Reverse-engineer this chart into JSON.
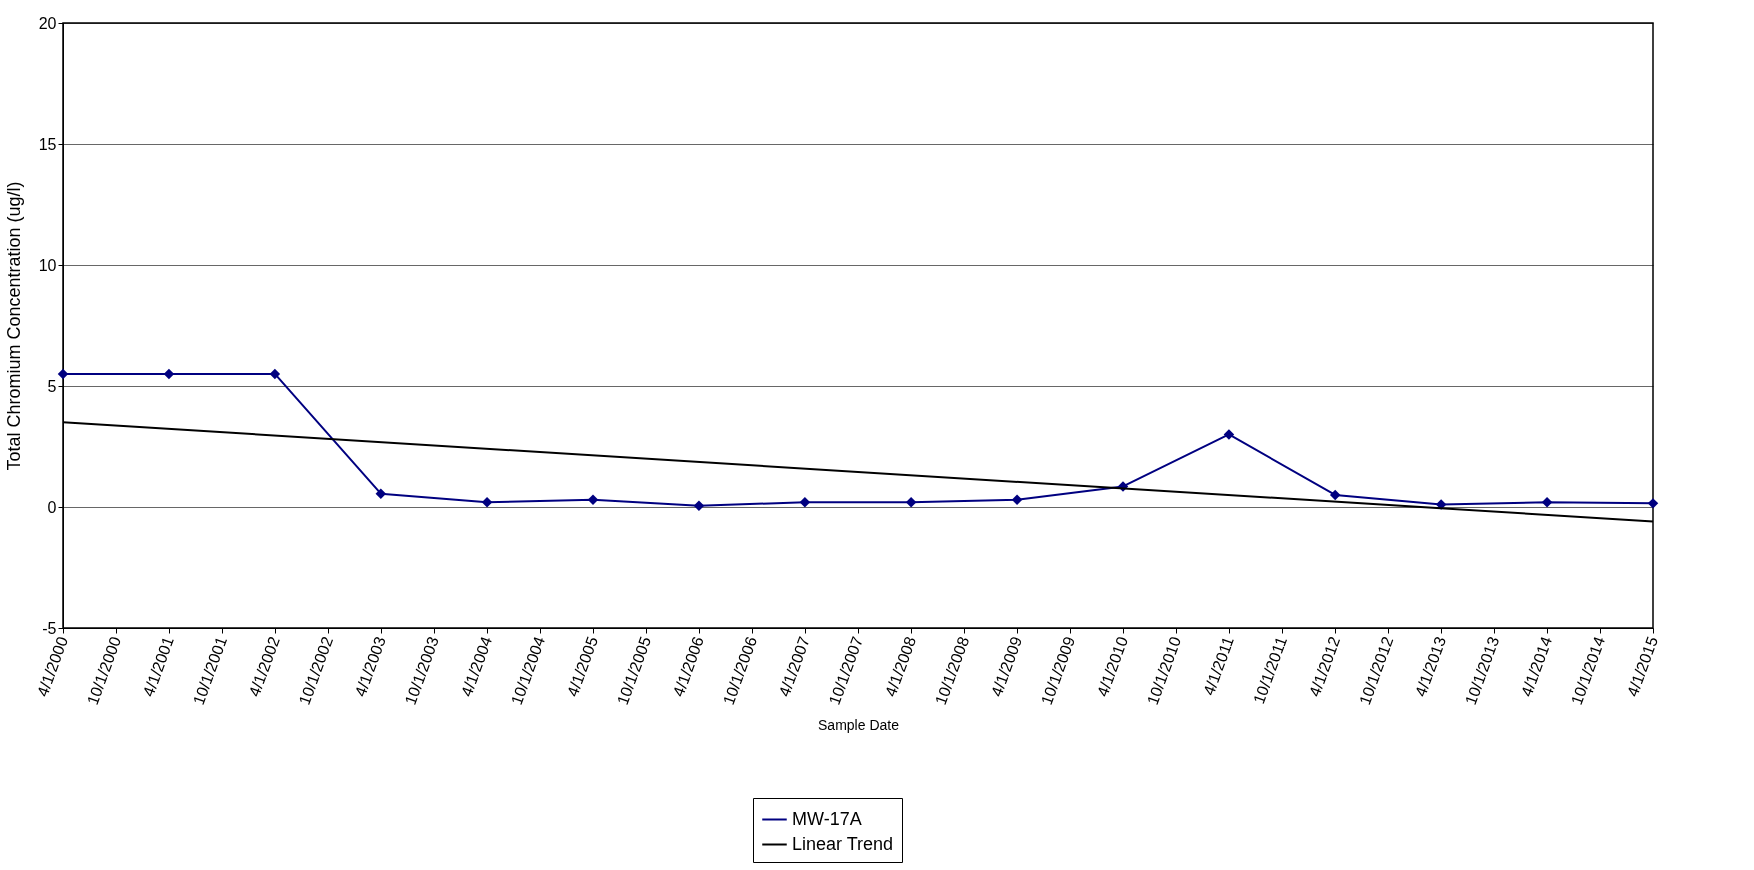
{
  "chart_data": {
    "type": "line",
    "xlabel": "Sample Date",
    "ylabel": "Total Chromium Concentration (ug/l)",
    "x": [
      "2000-04-01",
      "2001-04-01",
      "2002-04-01",
      "2003-04-01",
      "2004-04-01",
      "2005-04-01",
      "2006-04-01",
      "2007-04-01",
      "2008-04-01",
      "2009-04-01",
      "2010-04-01",
      "2011-04-01",
      "2012-04-01",
      "2013-04-01",
      "2014-04-01",
      "2015-04-01"
    ],
    "series": [
      {
        "name": "MW-17A",
        "color": "#000080",
        "marker": "diamond",
        "values": [
          5.5,
          5.5,
          5.5,
          0.55,
          0.2,
          0.3,
          0.05,
          0.2,
          0.2,
          0.3,
          0.85,
          3.0,
          0.5,
          0.1,
          0.2,
          0.15
        ]
      },
      {
        "name": "Linear Trend",
        "color": "#000000",
        "type": "line",
        "marker": "none",
        "x": [
          "2000-04-01",
          "2015-04-01"
        ],
        "values": [
          3.5,
          -0.6
        ]
      }
    ],
    "ylim": [
      -5,
      20
    ],
    "yticks": [
      -5,
      0,
      5,
      10,
      15,
      20
    ],
    "xlim": [
      "2000-04-01",
      "2015-04-01"
    ],
    "xticks": [
      {
        "value": "2000-04-01",
        "label": "4/1/2000"
      },
      {
        "value": "2000-10-01",
        "label": "10/1/2000"
      },
      {
        "value": "2001-04-01",
        "label": "4/1/2001"
      },
      {
        "value": "2001-10-01",
        "label": "10/1/2001"
      },
      {
        "value": "2002-04-01",
        "label": "4/1/2002"
      },
      {
        "value": "2002-10-01",
        "label": "10/1/2002"
      },
      {
        "value": "2003-04-01",
        "label": "4/1/2003"
      },
      {
        "value": "2003-10-01",
        "label": "10/1/2003"
      },
      {
        "value": "2004-04-01",
        "label": "4/1/2004"
      },
      {
        "value": "2004-10-01",
        "label": "10/1/2004"
      },
      {
        "value": "2005-04-01",
        "label": "4/1/2005"
      },
      {
        "value": "2005-10-01",
        "label": "10/1/2005"
      },
      {
        "value": "2006-04-01",
        "label": "4/1/2006"
      },
      {
        "value": "2006-10-01",
        "label": "10/1/2006"
      },
      {
        "value": "2007-04-01",
        "label": "4/1/2007"
      },
      {
        "value": "2007-10-01",
        "label": "10/1/2007"
      },
      {
        "value": "2008-04-01",
        "label": "4/1/2008"
      },
      {
        "value": "2008-10-01",
        "label": "10/1/2008"
      },
      {
        "value": "2009-04-01",
        "label": "4/1/2009"
      },
      {
        "value": "2009-10-01",
        "label": "10/1/2009"
      },
      {
        "value": "2010-04-01",
        "label": "4/1/2010"
      },
      {
        "value": "2010-10-01",
        "label": "10/1/2010"
      },
      {
        "value": "2011-04-01",
        "label": "4/1/2011"
      },
      {
        "value": "2011-10-01",
        "label": "10/1/2011"
      },
      {
        "value": "2012-04-01",
        "label": "4/1/2012"
      },
      {
        "value": "2012-10-01",
        "label": "10/1/2012"
      },
      {
        "value": "2013-04-01",
        "label": "4/1/2013"
      },
      {
        "value": "2013-10-01",
        "label": "10/1/2013"
      },
      {
        "value": "2014-04-01",
        "label": "4/1/2014"
      },
      {
        "value": "2014-10-01",
        "label": "10/1/2014"
      },
      {
        "value": "2015-04-01",
        "label": "4/1/2015"
      }
    ],
    "grid": "y",
    "legend": "bottom"
  }
}
